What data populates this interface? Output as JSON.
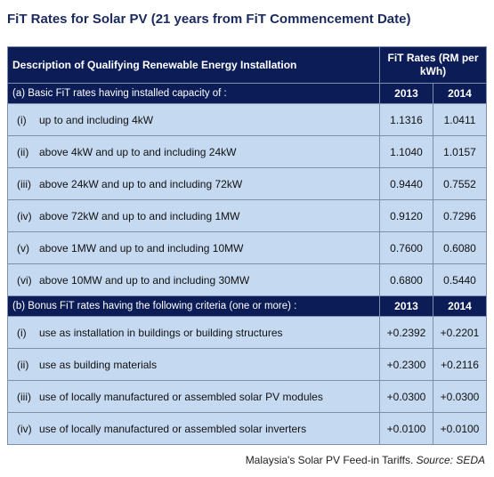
{
  "title": "FiT Rates for Solar PV (21 years from FiT Commencement Date)",
  "header": {
    "description": "Description of Qualifying Renewable Energy Installation",
    "rates": "FiT Rates (RM per kWh)"
  },
  "basic": {
    "label": "(a) Basic FiT rates having installed capacity of :",
    "year1": "2013",
    "year2": "2014",
    "rows": [
      {
        "num": "(i)",
        "desc": "up to and including 4kW",
        "v2013": "1.1316",
        "v2014": "1.0411"
      },
      {
        "num": "(ii)",
        "desc": "above 4kW and up to and including 24kW",
        "v2013": "1.1040",
        "v2014": "1.0157"
      },
      {
        "num": "(iii)",
        "desc": "above 24kW and up to and including 72kW",
        "v2013": "0.9440",
        "v2014": "0.7552"
      },
      {
        "num": "(iv)",
        "desc": "above 72kW and up to and including 1MW",
        "v2013": "0.9120",
        "v2014": "0.7296"
      },
      {
        "num": "(v)",
        "desc": "above 1MW and up to and including 10MW",
        "v2013": "0.7600",
        "v2014": "0.6080"
      },
      {
        "num": "(vi)",
        "desc": "above 10MW and up to and including 30MW",
        "v2013": "0.6800",
        "v2014": "0.5440"
      }
    ]
  },
  "bonus": {
    "label": "(b) Bonus FiT rates having the following criteria (one or more) :",
    "year1": "2013",
    "year2": "2014",
    "rows": [
      {
        "num": "(i)",
        "desc": "use as installation in buildings or building structures",
        "v2013": "+0.2392",
        "v2014": "+0.2201"
      },
      {
        "num": "(ii)",
        "desc": "use as building materials",
        "v2013": "+0.2300",
        "v2014": "+0.2116"
      },
      {
        "num": "(iii)",
        "desc": "use of locally manufactured or assembled solar PV modules",
        "v2013": "+0.0300",
        "v2014": "+0.0300"
      },
      {
        "num": "(iv)",
        "desc": "use of locally manufactured or assembled solar inverters",
        "v2013": "+0.0100",
        "v2014": "+0.0100"
      }
    ]
  },
  "caption": {
    "text": "Malaysia's Solar PV Feed-in Tariffs. ",
    "source": "Source: SEDA"
  }
}
